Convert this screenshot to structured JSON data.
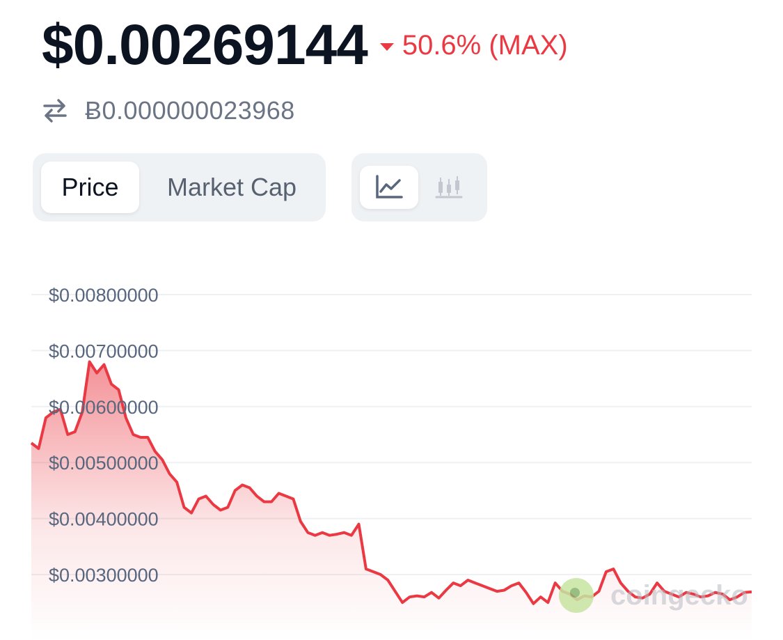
{
  "header": {
    "price": "$0.00269144",
    "change": "50.6% (MAX)",
    "btc_price": "Ƀ0.000000023968"
  },
  "tabs": [
    {
      "label": "Price",
      "active": true
    },
    {
      "label": "Market Cap",
      "active": false
    }
  ],
  "chart_types": [
    {
      "icon": "line-chart-icon",
      "active": true
    },
    {
      "icon": "candlestick-chart-icon",
      "active": false
    }
  ],
  "colors": {
    "negative": "#ea3943",
    "text_primary": "#0d1421",
    "text_secondary": "#58667e"
  },
  "watermark": "coingecko",
  "chart_data": {
    "type": "area",
    "yticks": [
      "$0.00800000",
      "$0.00700000",
      "$0.00600000",
      "$0.00500000",
      "$0.00400000",
      "$0.00300000"
    ],
    "ylim": [
      0.0023,
      0.0085
    ],
    "grid": true,
    "x": [
      0,
      1,
      2,
      3,
      4,
      5,
      6,
      7,
      8,
      9,
      10,
      11,
      12,
      13,
      14,
      15,
      16,
      17,
      18,
      19,
      20,
      21,
      22,
      23,
      24,
      25,
      26,
      27,
      28,
      29,
      30,
      31,
      32,
      33,
      34,
      35,
      36,
      37,
      38,
      39,
      40,
      41,
      42,
      43,
      44,
      45,
      46,
      47,
      48,
      49,
      50,
      51,
      52,
      53,
      54,
      55,
      56,
      57,
      58,
      59,
      60,
      61,
      62,
      63,
      64,
      65,
      66,
      67,
      68,
      69,
      70,
      71,
      72,
      73,
      74,
      75,
      76,
      77,
      78,
      79,
      80,
      81,
      82,
      83,
      84,
      85,
      86,
      87,
      88,
      89,
      90,
      91,
      92,
      93,
      94,
      95,
      96,
      97,
      98,
      99
    ],
    "values": [
      0.00535,
      0.00525,
      0.0058,
      0.0059,
      0.00595,
      0.0055,
      0.00555,
      0.0059,
      0.0068,
      0.0066,
      0.00675,
      0.0064,
      0.0063,
      0.0058,
      0.0055,
      0.00545,
      0.00545,
      0.0052,
      0.00505,
      0.0048,
      0.00465,
      0.0042,
      0.0041,
      0.00435,
      0.0044,
      0.00425,
      0.00415,
      0.0042,
      0.0045,
      0.0046,
      0.00455,
      0.0044,
      0.0043,
      0.0043,
      0.00445,
      0.0044,
      0.00435,
      0.00395,
      0.00375,
      0.0037,
      0.00375,
      0.0037,
      0.00372,
      0.00375,
      0.0037,
      0.0039,
      0.0031,
      0.00305,
      0.003,
      0.0029,
      0.0027,
      0.0025,
      0.0026,
      0.00262,
      0.0026,
      0.00268,
      0.00258,
      0.00272,
      0.00285,
      0.0028,
      0.0029,
      0.00285,
      0.0028,
      0.00275,
      0.0027,
      0.00272,
      0.0028,
      0.00285,
      0.00268,
      0.00248,
      0.0026,
      0.0025,
      0.00285,
      0.0027,
      0.00265,
      0.00255,
      0.00262,
      0.0026,
      0.0027,
      0.00305,
      0.0031,
      0.00285,
      0.0027,
      0.0026,
      0.00258,
      0.00265,
      0.00285,
      0.0027,
      0.00265,
      0.0026,
      0.00268,
      0.00265,
      0.0026,
      0.00262,
      0.00268,
      0.00265,
      0.00255,
      0.0026,
      0.00268,
      0.00269
    ]
  }
}
